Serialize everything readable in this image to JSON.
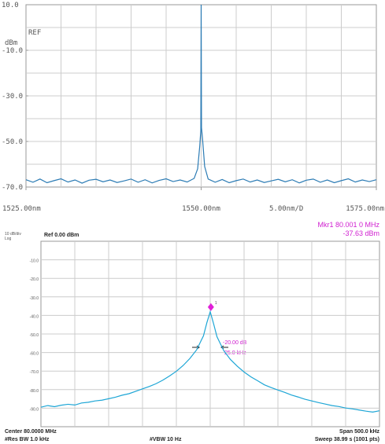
{
  "chart_data": [
    {
      "type": "line",
      "color": "#2b7bb4",
      "ref_label": "REF",
      "unit_label": "dBm",
      "scale_label": "5.00nm/D",
      "xlim": [
        1525,
        1575
      ],
      "ylim": [
        -70,
        10
      ],
      "xticks": [
        {
          "value": 1525,
          "label": "1525.00nm"
        },
        {
          "value": 1550,
          "label": "1550.00nm"
        },
        {
          "value": 1575,
          "label": "1575.00nm"
        }
      ],
      "yticks": [
        {
          "value": 10,
          "label": "10.0"
        },
        {
          "value": -10,
          "label": "-10.0"
        },
        {
          "value": -30,
          "label": "-30.0"
        },
        {
          "value": -50,
          "label": "-50.0"
        },
        {
          "value": -70,
          "label": "-70.0"
        }
      ],
      "grid": true,
      "x": [
        1525,
        1526,
        1527,
        1528,
        1529,
        1530,
        1531,
        1532,
        1533,
        1534,
        1535,
        1536,
        1537,
        1538,
        1539,
        1540,
        1541,
        1542,
        1543,
        1544,
        1545,
        1546,
        1547,
        1548,
        1549,
        1549.5,
        1549.8,
        1549.95,
        1550,
        1550.05,
        1550.2,
        1550.5,
        1551,
        1552,
        1553,
        1554,
        1555,
        1556,
        1557,
        1558,
        1559,
        1560,
        1561,
        1562,
        1563,
        1564,
        1565,
        1566,
        1567,
        1568,
        1569,
        1570,
        1571,
        1572,
        1573,
        1574,
        1575
      ],
      "values": [
        -66.8,
        -67.9,
        -66.5,
        -68.1,
        -67.2,
        -66.4,
        -67.8,
        -66.9,
        -68.3,
        -67.0,
        -66.6,
        -67.7,
        -66.9,
        -68.0,
        -67.3,
        -66.5,
        -67.9,
        -66.8,
        -68.2,
        -67.1,
        -66.4,
        -67.6,
        -66.9,
        -67.8,
        -66.2,
        -62.0,
        -52.0,
        -45.0,
        10.0,
        -44.0,
        -49.0,
        -61.0,
        -66.5,
        -67.9,
        -66.7,
        -68.1,
        -67.2,
        -66.5,
        -67.8,
        -66.9,
        -68.0,
        -67.3,
        -66.6,
        -67.7,
        -66.8,
        -68.2,
        -67.0,
        -66.5,
        -67.9,
        -66.9,
        -68.1,
        -67.2,
        -66.4,
        -67.8,
        -66.9,
        -67.6,
        -66.8
      ]
    },
    {
      "type": "line",
      "color": "#1ea6d6",
      "scale_label": "10 dB/div",
      "scale_type_label": "Log",
      "ref_label": "Ref 0.00 dBm",
      "marker_readout": [
        "Mkr1 80.001 0 MHz",
        "-37.63 dBm"
      ],
      "delta_labels": [
        "-20.00 dB",
        "25.0 kHz"
      ],
      "footer": [
        "Center 80.0000 MHz",
        "Span 500.0 kHz",
        "#Res BW 1.0 kHz",
        "#VBW 10 Hz",
        "Sweep  38.99 s (1001 pts)"
      ],
      "xlim": [
        79.75,
        80.25
      ],
      "ylim": [
        -100,
        0
      ],
      "yticks": [
        {
          "value": -10,
          "label": "-10.0"
        },
        {
          "value": -20,
          "label": "-20.0"
        },
        {
          "value": -30,
          "label": "-30.0"
        },
        {
          "value": -40,
          "label": "-40.0"
        },
        {
          "value": -50,
          "label": "-50.0"
        },
        {
          "value": -60,
          "label": "-60.0"
        },
        {
          "value": -70,
          "label": "-70.0"
        },
        {
          "value": -80,
          "label": "-80.0"
        },
        {
          "value": -90,
          "label": "-90.0"
        }
      ],
      "grid": true,
      "marker": {
        "x": 80.001,
        "y": -37.63,
        "label": "1",
        "color": "#e020d8"
      },
      "x": [
        79.75,
        79.76,
        79.77,
        79.78,
        79.79,
        79.8,
        79.81,
        79.82,
        79.83,
        79.84,
        79.85,
        79.86,
        79.87,
        79.88,
        79.89,
        79.9,
        79.91,
        79.92,
        79.93,
        79.94,
        79.95,
        79.96,
        79.97,
        79.98,
        79.99,
        79.995,
        80.0,
        80.005,
        80.01,
        80.02,
        80.03,
        80.04,
        80.05,
        80.06,
        80.07,
        80.08,
        80.09,
        80.1,
        80.11,
        80.12,
        80.13,
        80.14,
        80.15,
        80.16,
        80.17,
        80.18,
        80.19,
        80.2,
        80.21,
        80.22,
        80.23,
        80.24,
        80.25
      ],
      "values": [
        -89.5,
        -88.6,
        -89.2,
        -88.4,
        -87.9,
        -88.3,
        -87.2,
        -86.8,
        -86.1,
        -85.7,
        -84.9,
        -84.1,
        -83.0,
        -82.2,
        -80.9,
        -79.6,
        -78.3,
        -76.8,
        -74.9,
        -72.6,
        -70.1,
        -67.0,
        -63.2,
        -58.5,
        -51.0,
        -44.0,
        -38.0,
        -44.5,
        -51.5,
        -59.0,
        -63.8,
        -67.4,
        -70.5,
        -73.1,
        -75.2,
        -77.4,
        -78.9,
        -80.2,
        -81.5,
        -82.9,
        -84.0,
        -85.2,
        -86.1,
        -87.0,
        -87.8,
        -88.6,
        -89.1,
        -89.9,
        -90.4,
        -91.0,
        -91.6,
        -92.1,
        -91.4
      ]
    }
  ]
}
